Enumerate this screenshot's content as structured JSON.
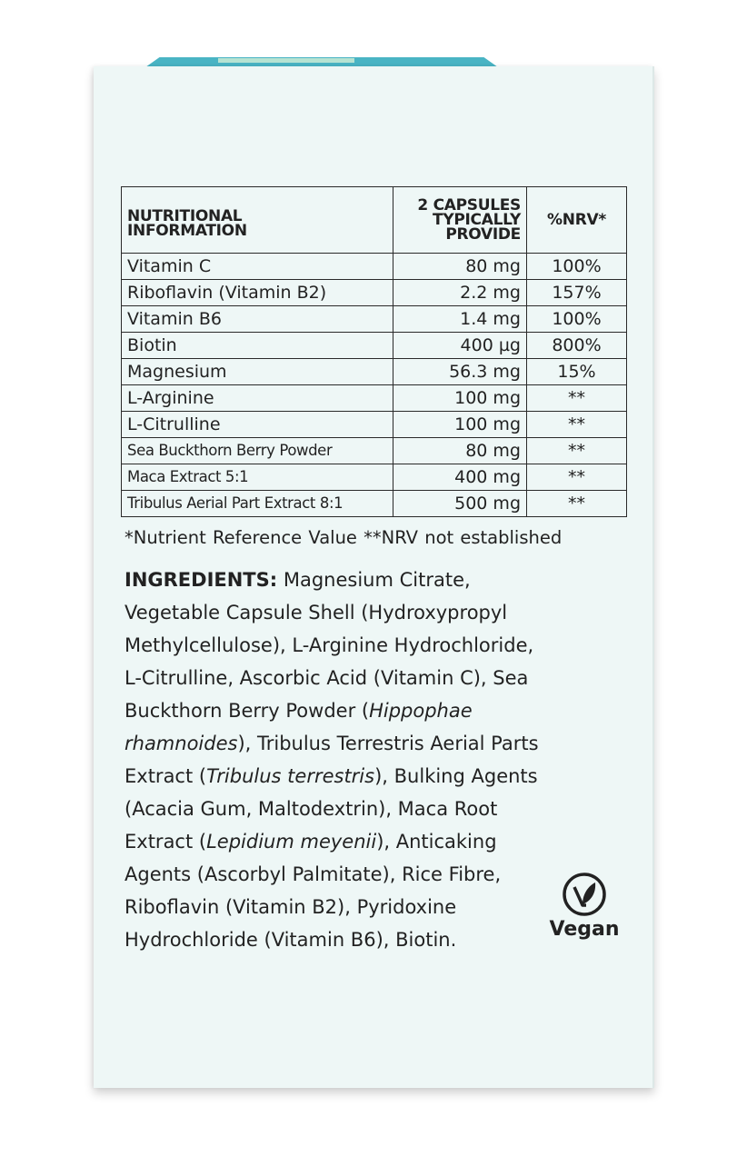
{
  "table": {
    "headers": [
      "NUTRITIONAL INFORMATION",
      "2 CAPSULES TYPICALLY PROVIDE",
      "%NRV*"
    ],
    "header_lines": {
      "col1": [
        "NUTRITIONAL",
        "INFORMATION"
      ],
      "col2": [
        "2 CAPSULES",
        "TYPICALLY",
        "PROVIDE"
      ],
      "col3": "%NRV*"
    },
    "rows": [
      {
        "name": "Vitamin C",
        "amount": "80 mg",
        "nrv": "100%"
      },
      {
        "name": "Riboflavin (Vitamin B2)",
        "amount": "2.2 mg",
        "nrv": "157%"
      },
      {
        "name": "Vitamin B6",
        "amount": "1.4 mg",
        "nrv": "100%"
      },
      {
        "name": "Biotin",
        "amount": "400 µg",
        "nrv": "800%"
      },
      {
        "name": "Magnesium",
        "amount": "56.3 mg",
        "nrv": "15%"
      },
      {
        "name": "L-Arginine",
        "amount": "100 mg",
        "nrv": "**"
      },
      {
        "name": "L-Citrulline",
        "amount": "100 mg",
        "nrv": "**"
      },
      {
        "name": "Sea Buckthorn Berry Powder",
        "amount": "80 mg",
        "nrv": "**"
      },
      {
        "name": "Maca Extract 5:1",
        "amount": "400 mg",
        "nrv": "**"
      },
      {
        "name": "Tribulus Aerial Part Extract 8:1",
        "amount": "500 mg",
        "nrv": "**"
      }
    ]
  },
  "footnote": "*Nutrient Reference Value   **NRV not established",
  "ingredients": {
    "label": "INGREDIENTS:",
    "lines": [
      [
        {
          "t": " Magnesium Citrate,"
        }
      ],
      [
        {
          "t": "Vegetable Capsule Shell (Hydroxypropyl"
        }
      ],
      [
        {
          "t": "Methylcellulose), L-Arginine Hydrochloride,"
        }
      ],
      [
        {
          "t": "L-Citrulline, Ascorbic Acid (Vitamin C), Sea"
        }
      ],
      [
        {
          "t": "Buckthorn Berry Powder ("
        },
        {
          "t": "Hippophae",
          "i": true
        }
      ],
      [
        {
          "t": "rhamnoides",
          "i": true
        },
        {
          "t": "), Tribulus Terrestris Aerial Parts"
        }
      ],
      [
        {
          "t": "Extract ("
        },
        {
          "t": "Tribulus terrestris",
          "i": true
        },
        {
          "t": "), Bulking Agents"
        }
      ],
      [
        {
          "t": "(Acacia Gum, Maltodextrin), Maca Root"
        }
      ],
      [
        {
          "t": "Extract ("
        },
        {
          "t": "Lepidium meyenii",
          "i": true
        },
        {
          "t": "), Anticaking"
        }
      ],
      [
        {
          "t": "Agents (Ascorbyl Palmitate), Rice Fibre,"
        }
      ],
      [
        {
          "t": "Riboflavin (Vitamin B2), Pyridoxine"
        }
      ],
      [
        {
          "t": "Hydrochloride (Vitamin B6), Biotin."
        }
      ]
    ]
  },
  "badge": {
    "icon": "vegan-leaf-icon",
    "label": "Vegan"
  },
  "colors": {
    "box": "#eef7f6",
    "text": "#222222",
    "top_strip": "#49b4c4"
  }
}
